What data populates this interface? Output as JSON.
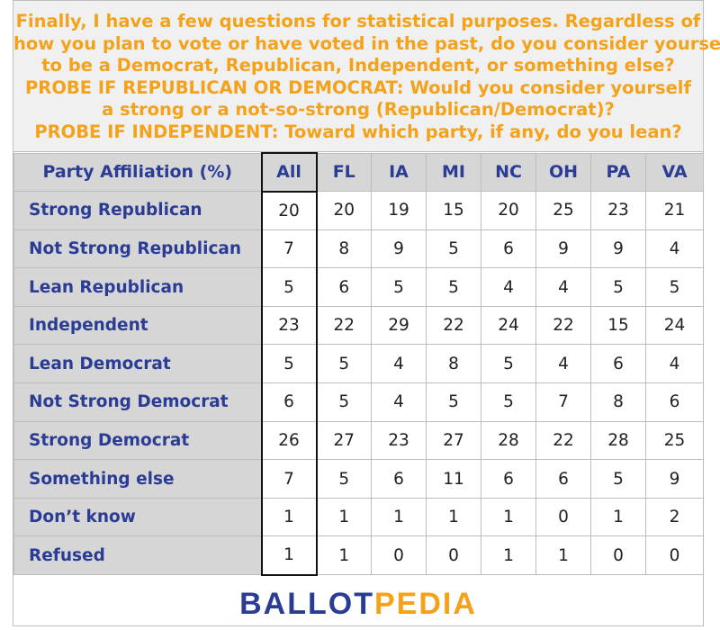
{
  "question": {
    "lines": [
      "Finally, I have a few questions for statistical purposes. Regardless of",
      "how you plan to vote or have voted in the past, do you consider yourself",
      "to be a Democrat, Republican, Independent, or something else?",
      "PROBE IF REPUBLICAN OR DEMOCRAT: Would you consider yourself",
      "a strong or a not-so-strong (Republican/Democrat)?",
      "PROBE IF INDEPENDENT: Toward which party, if any, do you lean?"
    ]
  },
  "table": {
    "header": [
      "Party Affiliation (%)",
      "All",
      "FL",
      "IA",
      "MI",
      "NC",
      "OH",
      "PA",
      "VA"
    ],
    "rows": [
      {
        "label": "Strong Republican",
        "values": [
          "20",
          "20",
          "19",
          "15",
          "20",
          "25",
          "23",
          "21"
        ]
      },
      {
        "label": "Not Strong Republican",
        "values": [
          "7",
          "8",
          "9",
          "5",
          "6",
          "9",
          "9",
          "4"
        ]
      },
      {
        "label": "Lean Republican",
        "values": [
          "5",
          "6",
          "5",
          "5",
          "4",
          "4",
          "5",
          "5"
        ]
      },
      {
        "label": "Independent",
        "values": [
          "23",
          "22",
          "29",
          "22",
          "24",
          "22",
          "15",
          "24"
        ]
      },
      {
        "label": "Lean Democrat",
        "values": [
          "5",
          "5",
          "4",
          "8",
          "5",
          "4",
          "6",
          "4"
        ]
      },
      {
        "label": "Not Strong Democrat",
        "values": [
          "6",
          "5",
          "4",
          "5",
          "5",
          "7",
          "8",
          "6"
        ]
      },
      {
        "label": "Strong Democrat",
        "values": [
          "26",
          "27",
          "23",
          "27",
          "28",
          "22",
          "28",
          "25"
        ]
      },
      {
        "label": "Something else",
        "values": [
          "7",
          "5",
          "6",
          "11",
          "6",
          "6",
          "5",
          "9"
        ]
      },
      {
        "label": "Don’t know",
        "values": [
          "1",
          "1",
          "1",
          "1",
          "1",
          "0",
          "1",
          "2"
        ]
      },
      {
        "label": "Refused",
        "values": [
          "1",
          "1",
          "0",
          "0",
          "1",
          "1",
          "0",
          "0"
        ]
      }
    ]
  },
  "logo": {
    "part1": "BALLOT",
    "part2": "PEDIA"
  },
  "colors": {
    "accent_orange": "#f3a21a",
    "brand_blue": "#2b3c95",
    "label_bg": "#d6d6d6",
    "question_bg": "#f0f0f0"
  }
}
